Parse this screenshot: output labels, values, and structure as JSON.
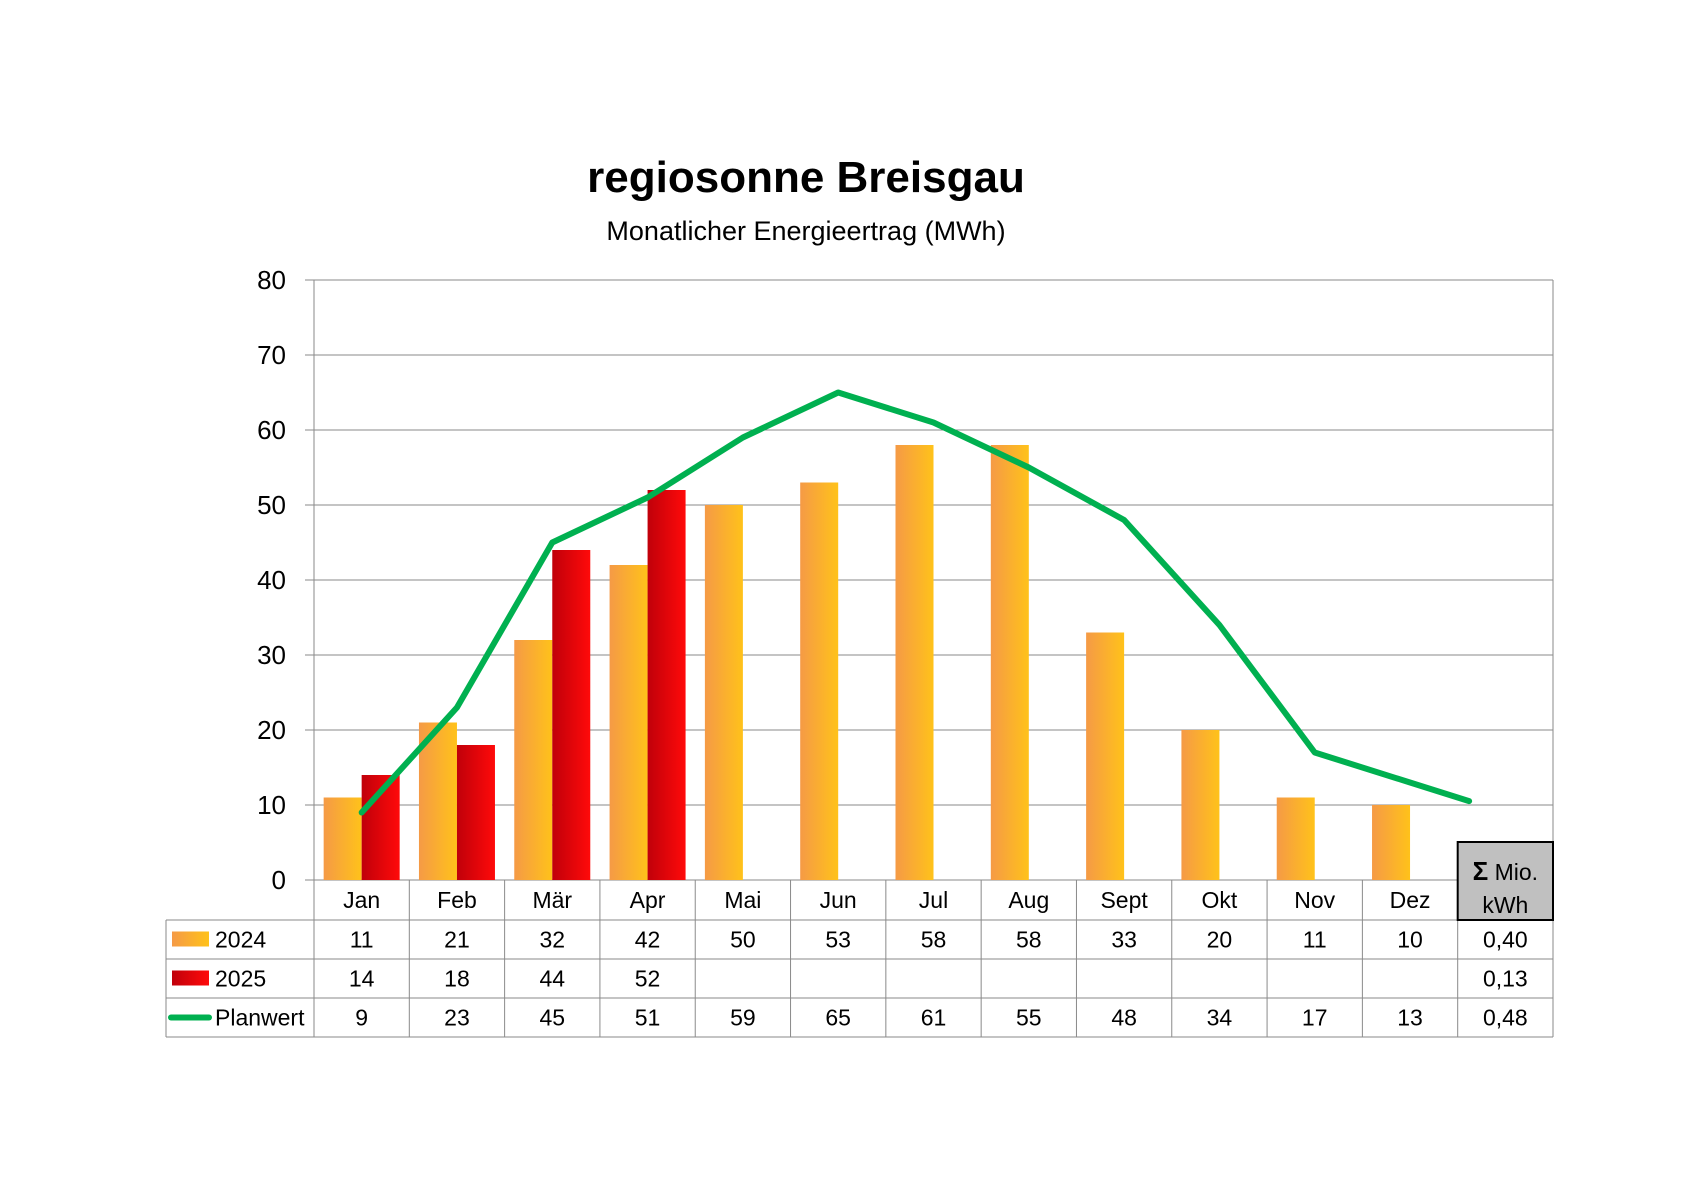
{
  "chart_data": {
    "type": "bar",
    "title": "regiosonne Breisgau",
    "subtitle": "Monatlicher Energieertrag (MWh)",
    "categories": [
      "Jan",
      "Feb",
      "Mär",
      "Apr",
      "Mai",
      "Jun",
      "Jul",
      "Aug",
      "Sept",
      "Okt",
      "Nov",
      "Dez"
    ],
    "ylim": [
      0,
      80
    ],
    "yticks": [
      0,
      10,
      20,
      30,
      40,
      50,
      60,
      70,
      80
    ],
    "grid": true,
    "legend_placement": "bottom data table",
    "series": [
      {
        "name": "2024",
        "type": "bar",
        "color": "#f7a13c",
        "values": [
          11,
          21,
          32,
          42,
          50,
          53,
          58,
          58,
          33,
          20,
          11,
          10
        ],
        "total": "0,40"
      },
      {
        "name": "2025",
        "type": "bar",
        "color": "#e3000f",
        "values": [
          14,
          18,
          44,
          52,
          null,
          null,
          null,
          null,
          null,
          null,
          null,
          null
        ],
        "total": "0,13"
      },
      {
        "name": "Planwert",
        "type": "line",
        "color": "#00b050",
        "values": [
          9,
          23,
          45,
          51,
          59,
          65,
          61,
          55,
          48,
          34,
          17,
          13
        ],
        "total": "0,48"
      }
    ],
    "total_header": {
      "symbol": "Σ",
      "line1": "Mio.",
      "line2": "kWh"
    }
  }
}
